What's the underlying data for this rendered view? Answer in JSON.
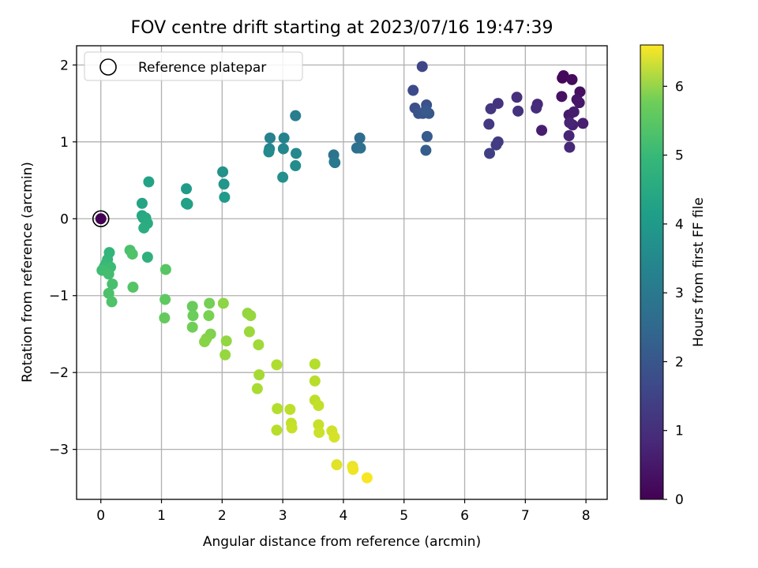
{
  "chart_data": {
    "type": "scatter",
    "title": "FOV centre drift starting at 2023/07/16 19:47:39",
    "xlabel": "Angular distance from reference (arcmin)",
    "ylabel": "Rotation from reference (arcmin)",
    "xlim": [
      -0.4,
      8.35
    ],
    "ylim": [
      -3.65,
      2.25
    ],
    "xticks": [
      "0",
      "1",
      "2",
      "3",
      "4",
      "5",
      "6",
      "7",
      "8"
    ],
    "yticks": [
      "2",
      "1",
      "0",
      "−1",
      "−2",
      "−3"
    ],
    "grid": true,
    "legend": {
      "placement": "top-left",
      "entries": [
        "Reference platepar"
      ]
    },
    "reference_point": {
      "x": 0,
      "y": 0
    },
    "colorbar": {
      "label": "Hours from first FF file",
      "colormap": "viridis",
      "range": [
        0,
        6.6
      ],
      "ticks": [
        "0",
        "1",
        "2",
        "3",
        "4",
        "5",
        "6"
      ]
    },
    "series": [
      {
        "x": [
          7.61,
          7.63,
          7.77,
          7.9,
          7.6,
          7.85,
          7.89,
          7.72,
          7.8,
          7.95,
          7.78,
          7.73,
          7.72,
          7.73,
          7.27,
          7.2,
          7.18
        ],
        "y": [
          1.83,
          1.86,
          1.81,
          1.65,
          1.59,
          1.55,
          1.51,
          1.35,
          1.39,
          1.24,
          1.22,
          1.25,
          1.08,
          0.93,
          1.15,
          1.49,
          1.44
        ],
        "hours": [
          0.1,
          0.15,
          0.2,
          0.25,
          0.3,
          0.35,
          0.4,
          0.45,
          0.5,
          0.55,
          0.6,
          0.65,
          0.7,
          0.75,
          0.55,
          0.75,
          0.85
        ]
      },
      {
        "x": [
          6.86,
          6.88,
          6.55,
          6.43,
          6.4,
          6.55,
          6.52,
          6.41
        ],
        "y": [
          1.58,
          1.4,
          1.5,
          1.43,
          1.23,
          1.0,
          0.96,
          0.85
        ],
        "hours": [
          0.9,
          0.95,
          1.0,
          1.05,
          1.1,
          1.15,
          1.2,
          1.25
        ]
      },
      {
        "x": [
          5.3,
          5.15,
          5.18,
          5.37,
          5.24,
          5.31,
          5.41,
          5.36,
          5.38,
          5.36
        ],
        "y": [
          1.98,
          1.67,
          1.44,
          1.48,
          1.37,
          1.37,
          1.37,
          1.41,
          1.07,
          0.89
        ],
        "hours": [
          1.4,
          1.5,
          1.6,
          1.65,
          1.7,
          1.75,
          1.8,
          1.85,
          1.9,
          1.95
        ]
      },
      {
        "x": [
          4.27,
          4.22,
          4.28,
          3.84,
          3.86,
          3.85
        ],
        "y": [
          1.05,
          0.92,
          0.92,
          0.83,
          0.73,
          0.74
        ],
        "hours": [
          2.3,
          2.4,
          2.45,
          2.5,
          2.6,
          2.65
        ]
      },
      {
        "x": [
          3.21,
          2.79,
          3.02,
          2.78,
          3.01,
          3.22,
          2.77,
          3.21,
          3.0
        ],
        "y": [
          1.34,
          1.05,
          1.05,
          0.91,
          0.91,
          0.85,
          0.87,
          0.69,
          0.54
        ],
        "hours": [
          2.8,
          2.9,
          2.95,
          3.0,
          3.05,
          3.1,
          3.15,
          3.2,
          3.3
        ]
      },
      {
        "x": [
          2.01,
          2.03,
          2.04,
          1.41,
          1.41,
          1.43
        ],
        "y": [
          0.61,
          0.45,
          0.28,
          0.39,
          0.2,
          0.19
        ],
        "hours": [
          3.35,
          3.45,
          3.55,
          3.6,
          3.7,
          3.75
        ]
      },
      {
        "x": [
          0.79,
          0.68,
          0.68,
          0.7,
          0.74,
          0.77,
          0.71,
          0.77
        ],
        "y": [
          0.48,
          0.2,
          0.04,
          0.01,
          0.01,
          -0.06,
          -0.12,
          -0.5
        ],
        "hours": [
          3.8,
          3.85,
          3.9,
          3.95,
          4.0,
          4.05,
          4.1,
          4.2
        ]
      },
      {
        "x": [
          0.14,
          0.11,
          0.09,
          0.06,
          0.16,
          0.02,
          0.13,
          0.19,
          0.13,
          0.18
        ],
        "y": [
          -0.44,
          -0.53,
          -0.58,
          -0.62,
          -0.63,
          -0.67,
          -0.72,
          -0.85,
          -0.97,
          -1.08
        ],
        "hours": [
          4.3,
          4.35,
          4.4,
          4.45,
          4.5,
          4.55,
          4.6,
          4.65,
          4.7,
          4.75
        ]
      },
      {
        "x": [
          0.48,
          0.52,
          0.53,
          1.07,
          1.06,
          1.05
        ],
        "y": [
          -0.41,
          -0.46,
          -0.89,
          -0.66,
          -1.05,
          -1.29
        ],
        "hours": [
          4.7,
          4.75,
          4.8,
          4.85,
          4.95,
          5.0
        ]
      },
      {
        "x": [
          1.51,
          1.52,
          1.51,
          1.79,
          1.78,
          1.81,
          1.74,
          1.71,
          2.02,
          2.07,
          2.05
        ],
        "y": [
          -1.14,
          -1.26,
          -1.41,
          -1.1,
          -1.26,
          -1.5,
          -1.56,
          -1.6,
          -1.1,
          -1.59,
          -1.77
        ],
        "hours": [
          5.05,
          5.1,
          5.15,
          5.2,
          5.25,
          5.3,
          5.35,
          5.4,
          5.45,
          5.5,
          5.55
        ]
      },
      {
        "x": [
          2.42,
          2.47,
          2.45,
          2.6,
          2.61,
          2.58
        ],
        "y": [
          -1.23,
          -1.26,
          -1.47,
          -1.64,
          -2.03,
          -2.21
        ],
        "hours": [
          5.5,
          5.55,
          5.6,
          5.65,
          5.7,
          5.75
        ]
      },
      {
        "x": [
          2.9,
          2.91,
          2.9,
          3.12,
          3.14,
          3.15
        ],
        "y": [
          -1.9,
          -2.47,
          -2.75,
          -2.48,
          -2.66,
          -2.72
        ],
        "hours": [
          5.8,
          5.85,
          5.9,
          5.95,
          6.0,
          6.05
        ]
      },
      {
        "x": [
          3.53,
          3.53,
          3.53,
          3.59,
          3.59,
          3.6,
          3.81,
          3.85
        ],
        "y": [
          -1.89,
          -2.11,
          -2.36,
          -2.43,
          -2.68,
          -2.78,
          -2.76,
          -2.84
        ],
        "hours": [
          5.85,
          5.9,
          5.95,
          6.0,
          6.05,
          6.1,
          6.15,
          6.2
        ]
      },
      {
        "x": [
          3.89,
          4.15,
          4.16,
          4.39
        ],
        "y": [
          -3.2,
          -3.22,
          -3.26,
          -3.37
        ],
        "hours": [
          6.3,
          6.4,
          6.45,
          6.55
        ]
      }
    ]
  }
}
